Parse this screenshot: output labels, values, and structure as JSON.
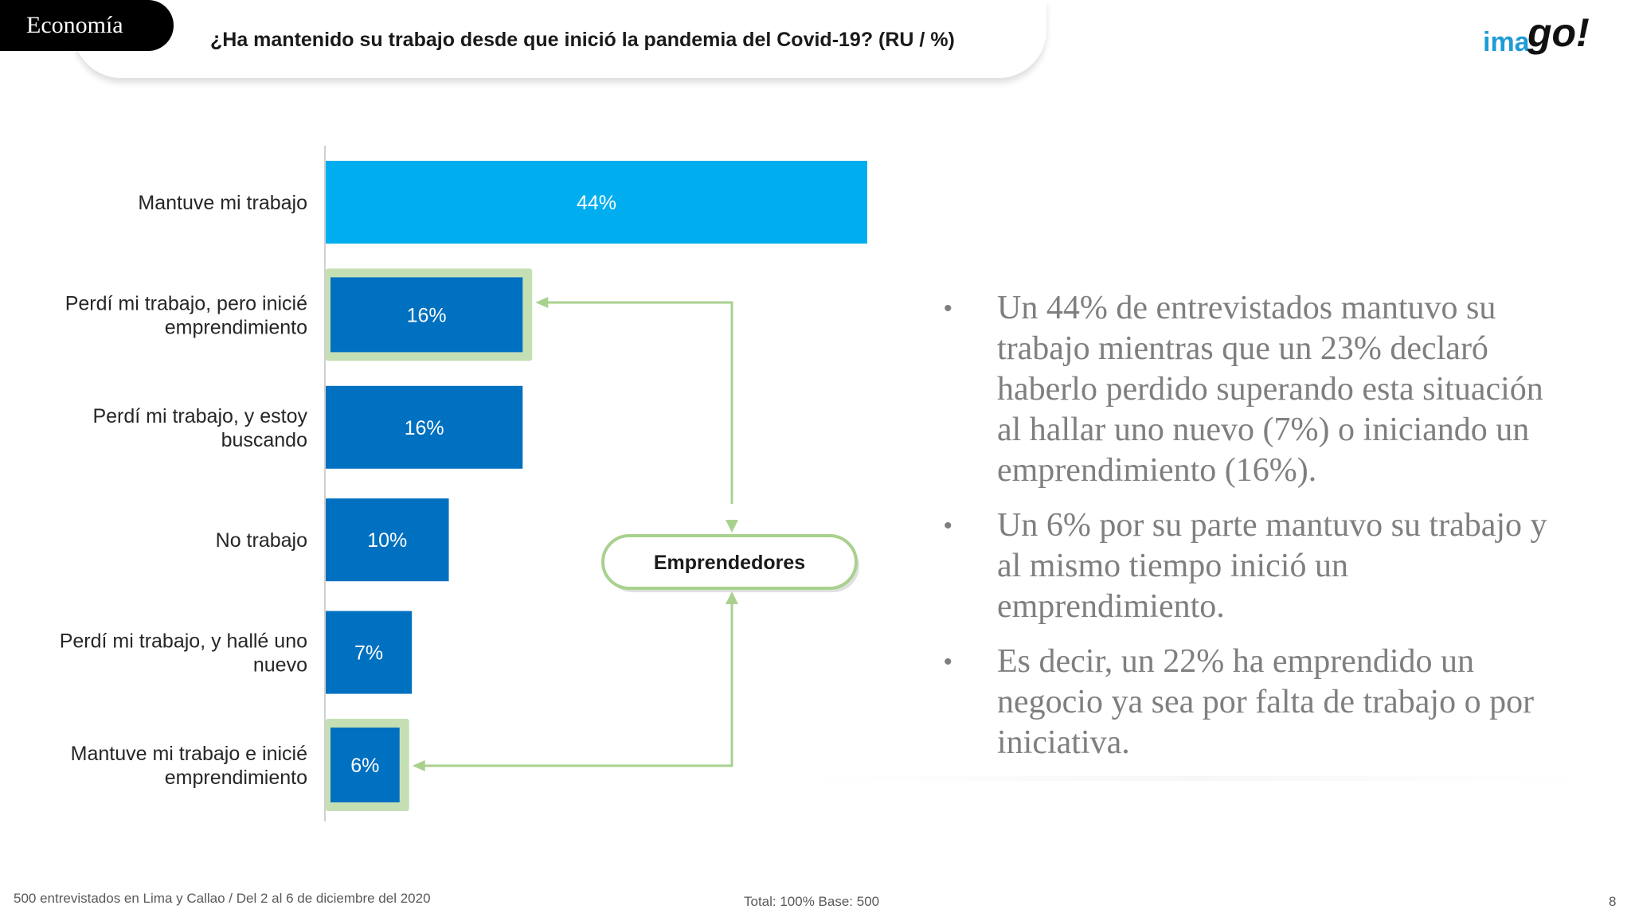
{
  "header": {
    "section": "Economía",
    "question": "¿Ha mantenido su trabajo desde que inició la pandemia del Covid-19?  (RU  /  %)"
  },
  "logo": {
    "text_main": "ima",
    "text_go": "go!"
  },
  "chart_data": {
    "type": "bar",
    "orientation": "horizontal",
    "categories": [
      [
        "Mantuve mi trabajo"
      ],
      [
        "Perdí mi trabajo, pero inicié",
        "emprendimiento"
      ],
      [
        "Perdí mi trabajo, y estoy",
        "buscando"
      ],
      [
        "No trabajo"
      ],
      [
        "Perdí mi trabajo, y hallé uno",
        "nuevo"
      ],
      [
        "Mantuve mi trabajo e inicié",
        "emprendimiento"
      ]
    ],
    "values": [
      44,
      16,
      16,
      10,
      7,
      6
    ],
    "value_labels": [
      "44%",
      "16%",
      "16%",
      "10%",
      "7%",
      "6%"
    ],
    "bar_colors": [
      "#00aeef",
      "#0070c0",
      "#0070c0",
      "#0070c0",
      "#0070c0",
      "#0070c0"
    ],
    "highlighted": [
      1,
      5
    ],
    "highlight_color": "#c5dfb4",
    "annotation": {
      "label": "Emprendedores",
      "targets": [
        1,
        5
      ],
      "color": "#a9d18e"
    }
  },
  "bullets": [
    "Un 44% de entrevistados mantuvo su trabajo mientras que un 23% declaró haberlo perdido superando esta situación al hallar uno nuevo (7%) o iniciando un emprendimiento (16%).",
    "Un 6% por su parte mantuvo su trabajo y al mismo tiempo inició un emprendimiento.",
    "Es decir, un 22% ha emprendido un negocio ya sea por falta de trabajo o por iniciativa."
  ],
  "bullet_symbol": "•",
  "footer": {
    "sample": "500 entrevistados en Lima y Callao   /   Del 2 al 6 de diciembre del 2020",
    "totals": "Total: 100%   Base: 500",
    "page": "8"
  },
  "colors": {
    "accent_light": "#00aeef",
    "accent_dark": "#0070c0",
    "highlight": "#a9d18e",
    "text_gray": "#7f7f7f"
  }
}
